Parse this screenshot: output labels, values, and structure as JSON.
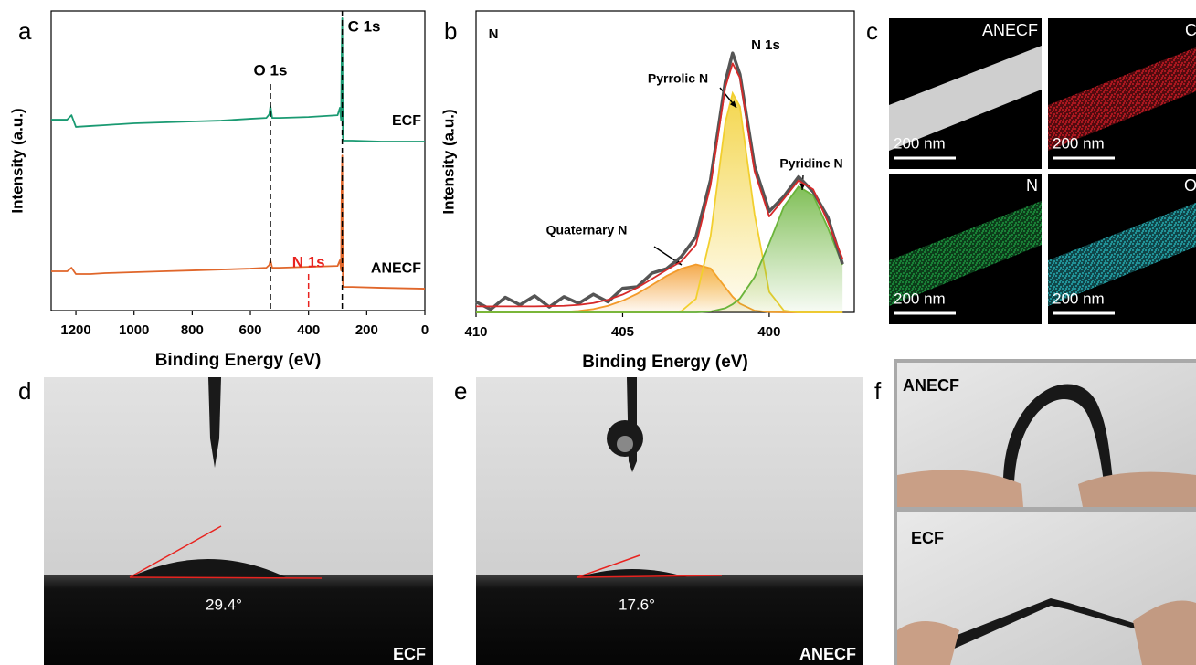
{
  "panel_labels": [
    "a",
    "b",
    "c",
    "d",
    "e",
    "f"
  ],
  "chart_data": [
    {
      "type": "line",
      "xlabel": "Binding Energy (eV)",
      "ylabel": "Intensity (a.u.)",
      "xlim": [
        1285,
        0
      ],
      "xticks": [
        1200,
        1000,
        800,
        600,
        400,
        200,
        0
      ],
      "ylim": [
        0,
        100
      ],
      "x": [
        1285,
        1230,
        1215,
        1200,
        1150,
        1100,
        1000,
        900,
        800,
        700,
        600,
        545,
        535,
        531,
        525,
        500,
        400,
        300,
        292,
        288,
        286,
        284,
        282,
        280,
        250,
        150,
        0
      ],
      "series": [
        {
          "name": "ECF",
          "color": "#1a9a72",
          "values": [
            63.7,
            63.7,
            65.2,
            61.3,
            61.6,
            61.9,
            62.5,
            62.8,
            63.1,
            63.4,
            64.0,
            64.3,
            65.5,
            68.3,
            64.3,
            64.3,
            64.6,
            65.2,
            67.7,
            63.4,
            85.4,
            97.6,
            57.9,
            56.7,
            56.7,
            56.4,
            56.4
          ]
        },
        {
          "name": "ANECF",
          "color": "#e0662a",
          "values": [
            13.1,
            13.1,
            14.3,
            12.2,
            12.2,
            12.5,
            12.8,
            13.1,
            13.4,
            13.7,
            14.0,
            14.3,
            15.2,
            16.8,
            14.3,
            14.3,
            14.6,
            14.9,
            16.8,
            13.4,
            42.7,
            51.8,
            9.1,
            7.9,
            7.9,
            7.6,
            7.3
          ]
        }
      ],
      "annotations": [
        {
          "label": "O 1s",
          "x": 531,
          "color": "#000000"
        },
        {
          "label": "C 1s",
          "x": 284,
          "color": "#000000"
        },
        {
          "label": "N 1s",
          "x": 400,
          "color": "#e8231f"
        }
      ]
    },
    {
      "type": "line",
      "xlabel": "Binding Energy (eV)",
      "ylabel": "Intensity (a.u.)",
      "xlim": [
        410,
        397.1
      ],
      "xticks": [
        410,
        405,
        400
      ],
      "ylim": [
        0,
        100
      ],
      "x": [
        410,
        409.5,
        409,
        408.5,
        408,
        407.5,
        407,
        406.5,
        406,
        405.5,
        405,
        404.5,
        404,
        403.5,
        403,
        402.5,
        402,
        401.5,
        401.25,
        401,
        400.5,
        400,
        399.5,
        399,
        398.5,
        398,
        397.5
      ],
      "series": [
        {
          "name": "Quaternary N",
          "color": "#f39a2a",
          "fill": true,
          "values": [
            0,
            0,
            0,
            0,
            0,
            0.1,
            0.2,
            0.5,
            1.1,
            2.2,
            3.9,
            6.2,
            9.1,
            12.1,
            14.5,
            15.9,
            14.6,
            8.3,
            5.2,
            2.9,
            0.6,
            0.1,
            0,
            0,
            0,
            0,
            0
          ]
        },
        {
          "name": "Pyrrolic N",
          "color": "#f2cf2e",
          "fill": true,
          "values": [
            0,
            0,
            0,
            0,
            0,
            0,
            0,
            0,
            0,
            0,
            0,
            0,
            0,
            0,
            0.4,
            4.5,
            25.3,
            62.9,
            72.7,
            68.3,
            32.5,
            6.8,
            0.6,
            0,
            0,
            0,
            0
          ]
        },
        {
          "name": "Pyridine N",
          "color": "#6ab43a",
          "fill": true,
          "values": [
            0,
            0,
            0,
            0,
            0,
            0,
            0,
            0,
            0,
            0,
            0,
            0,
            0,
            0,
            0,
            0,
            0.3,
            1.4,
            2.7,
            4.6,
            11.7,
            22.9,
            35.1,
            41.8,
            38.8,
            28.0,
            15.8
          ]
        },
        {
          "color": "#555555",
          "values": [
            3.5,
            1.0,
            5.0,
            2.5,
            5.5,
            1.8,
            5.2,
            3.0,
            6.0,
            3.5,
            8.0,
            8.5,
            13.0,
            14.5,
            18.5,
            25.0,
            44.0,
            76.5,
            86.0,
            79.0,
            48.5,
            33.5,
            38.5,
            45.0,
            40.0,
            31.5,
            16.0
          ]
        },
        {
          "color": "#d62a2a",
          "values": [
            2.0,
            2.0,
            2.0,
            2.0,
            2.0,
            2.1,
            2.2,
            2.5,
            3.1,
            4.2,
            5.9,
            8.2,
            11.1,
            14.1,
            16.9,
            22.4,
            42.2,
            74.6,
            82.6,
            77.8,
            46.8,
            31.8,
            37.7,
            43.8,
            40.8,
            30.0,
            17.8
          ]
        }
      ],
      "annotations": [
        {
          "label": "N"
        },
        {
          "label": "N 1s"
        }
      ]
    }
  ],
  "eds_maps": [
    {
      "label": "ANECF",
      "scale_bar": "200 nm",
      "color": "#e6e6e6"
    },
    {
      "label": "C",
      "scale_bar": "200 nm",
      "color": "#e8202a"
    },
    {
      "label": "N",
      "scale_bar": "200 nm",
      "color": "#22b04a"
    },
    {
      "label": "O",
      "scale_bar": "200 nm",
      "color": "#2ec8d0"
    }
  ],
  "contact_angle": [
    {
      "sample": "ECF",
      "angle": "29.4°"
    },
    {
      "sample": "ANECF",
      "angle": "17.6°"
    }
  ],
  "photos": [
    {
      "label": "ANECF"
    },
    {
      "label": "ECF"
    }
  ]
}
